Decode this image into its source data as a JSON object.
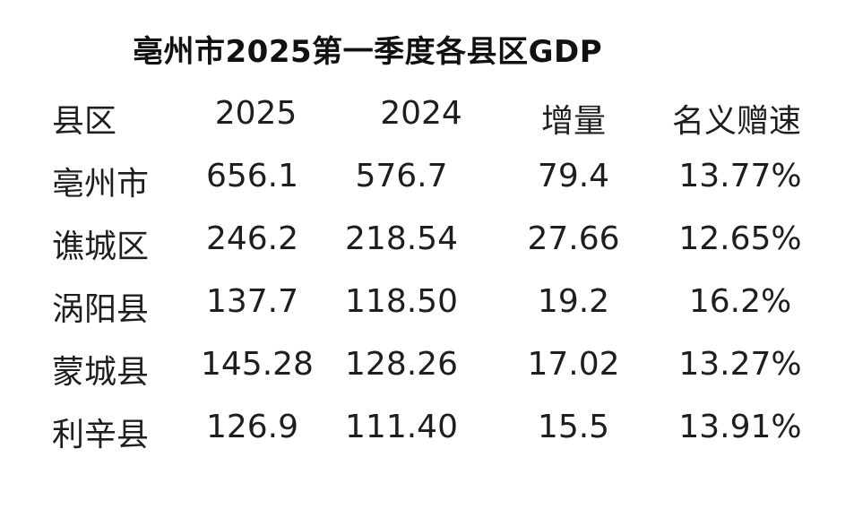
{
  "title": "亳州市2025第一季度各县区GDP",
  "headers": [
    "县区",
    "2025",
    "2024",
    "增量",
    "名义赠速"
  ],
  "rows": [
    [
      "亳州市",
      "656.1",
      "576.7",
      "79.4",
      "13.77%"
    ],
    [
      "谯城区",
      "246.2",
      "218.54",
      "27.66",
      "12.65%"
    ],
    [
      "涡阳县",
      "137.7",
      "118.50",
      "19.2",
      "16.2%"
    ],
    [
      "蒙城县",
      "145.28",
      "128.26",
      "17.02",
      "13.27%"
    ],
    [
      "利辛县",
      "126.9",
      "111.40",
      "15.5",
      "13.91%"
    ]
  ]
}
